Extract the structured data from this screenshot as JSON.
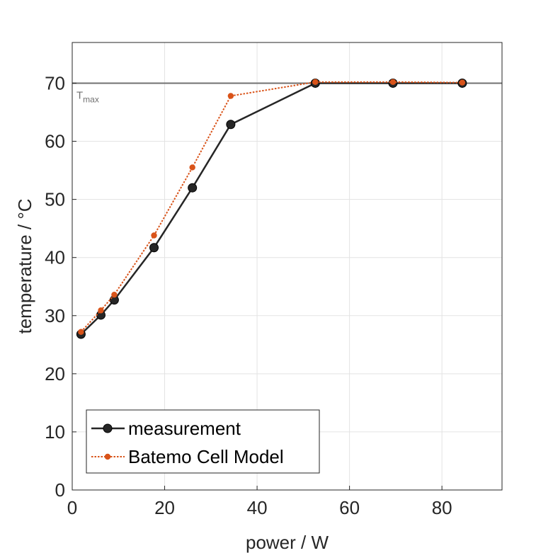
{
  "chart_data": {
    "type": "line",
    "title": "",
    "xlabel": "power / W",
    "ylabel": "temperature / °C",
    "xlim": [
      0,
      93
    ],
    "ylim": [
      0,
      77
    ],
    "xticks": [
      0,
      20,
      40,
      60,
      80
    ],
    "yticks": [
      0,
      10,
      20,
      30,
      40,
      50,
      60,
      70
    ],
    "grid": true,
    "legend_position": "bottom-left",
    "reference_line": {
      "y": 70,
      "label_main": "T",
      "label_sub": "max",
      "color": "#707070"
    },
    "series": [
      {
        "name": "measurement",
        "color": "#262626",
        "style": "solid",
        "x": [
          1.9,
          6.2,
          9.1,
          17.7,
          26.0,
          34.3,
          52.6,
          69.4,
          84.4
        ],
        "y": [
          26.8,
          30.1,
          32.7,
          41.7,
          52.0,
          62.9,
          70.0,
          70.0,
          70.0
        ]
      },
      {
        "name": "Batemo Cell Model",
        "color": "#d95319",
        "style": "dotted",
        "x": [
          1.9,
          6.2,
          9.1,
          17.7,
          26.0,
          34.3,
          52.6,
          69.4,
          84.4
        ],
        "y": [
          27.2,
          30.9,
          33.6,
          43.8,
          55.5,
          67.8,
          70.2,
          70.2,
          70.1
        ]
      }
    ]
  }
}
